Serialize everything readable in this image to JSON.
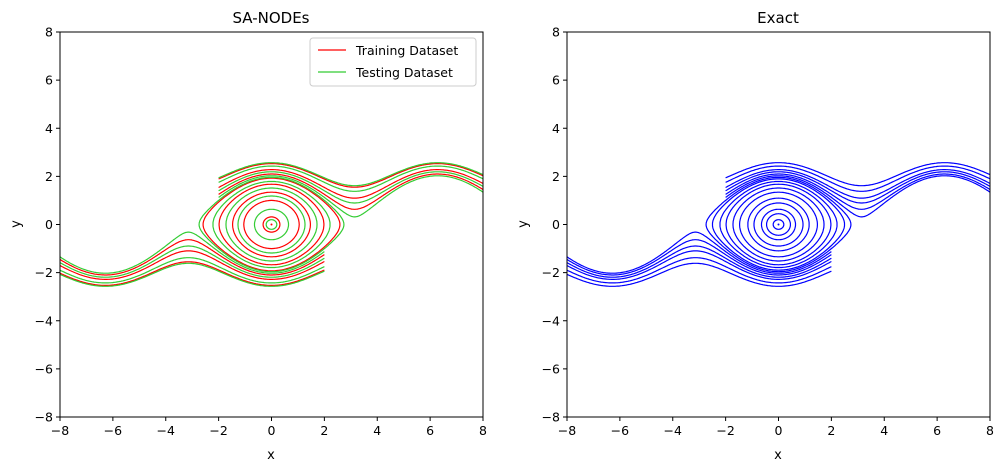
{
  "chart_data": [
    {
      "type": "line",
      "title": "SA-NODEs",
      "xlabel": "x",
      "ylabel": "y",
      "xlim": [
        -8,
        8
      ],
      "ylim": [
        -8,
        8
      ],
      "xticks": [
        -8,
        -6,
        -4,
        -2,
        0,
        2,
        4,
        6,
        8
      ],
      "yticks": [
        -8,
        -6,
        -4,
        -2,
        0,
        2,
        4,
        6,
        8
      ],
      "grid": false,
      "legend": {
        "position": "top-right",
        "entries": [
          {
            "label": "Training Dataset",
            "color": "#ff0000"
          },
          {
            "label": "Testing Dataset",
            "color": "#33cc33"
          }
        ]
      },
      "series": [
        {
          "name": "Training Dataset",
          "color": "#ff0000",
          "kind": "orbit",
          "energies": [
            -0.95,
            -0.5,
            -0.1,
            0.4,
            0.85
          ]
        },
        {
          "name": "Training Dataset",
          "color": "#ff0000",
          "kind": "wave",
          "direction": "right",
          "energies": [
            1.2,
            1.6,
            2.2
          ],
          "x_start": -2.0
        },
        {
          "name": "Training Dataset",
          "color": "#ff0000",
          "kind": "wave",
          "direction": "left",
          "energies": [
            1.2,
            1.6,
            2.2
          ],
          "x_start": 2.0
        },
        {
          "name": "Testing Dataset",
          "color": "#33cc33",
          "kind": "orbit",
          "energies": [
            -0.98,
            -0.8,
            -0.3,
            0.15,
            0.6,
            0.92
          ]
        },
        {
          "name": "Testing Dataset",
          "color": "#33cc33",
          "kind": "wave",
          "direction": "right",
          "energies": [
            1.05,
            1.4,
            1.95,
            2.3
          ],
          "x_start": -2.0
        },
        {
          "name": "Testing Dataset",
          "color": "#33cc33",
          "kind": "wave",
          "direction": "left",
          "energies": [
            1.05,
            1.4,
            1.95,
            2.3
          ],
          "x_start": 2.0
        }
      ],
      "equilibrium": {
        "x": 0,
        "y": 0
      }
    },
    {
      "type": "line",
      "title": "Exact",
      "xlabel": "x",
      "ylabel": "y",
      "xlim": [
        -8,
        8
      ],
      "ylim": [
        -8,
        8
      ],
      "xticks": [
        -8,
        -6,
        -4,
        -2,
        0,
        2,
        4,
        6,
        8
      ],
      "yticks": [
        -8,
        -6,
        -4,
        -2,
        0,
        2,
        4,
        6,
        8
      ],
      "grid": false,
      "series": [
        {
          "name": "Exact",
          "color": "#0000ff",
          "kind": "orbit",
          "energies": [
            -0.98,
            -0.9,
            -0.8,
            -0.6,
            -0.4,
            -0.1,
            0.15,
            0.4,
            0.6,
            0.8,
            0.92
          ]
        },
        {
          "name": "Exact",
          "color": "#0000ff",
          "kind": "wave",
          "direction": "right",
          "energies": [
            1.05,
            1.2,
            1.4,
            1.6,
            1.95,
            2.3
          ],
          "x_start": -2.0
        },
        {
          "name": "Exact",
          "color": "#0000ff",
          "kind": "wave",
          "direction": "left",
          "energies": [
            1.05,
            1.2,
            1.4,
            1.6,
            1.95,
            2.3
          ],
          "x_start": 2.0
        }
      ],
      "equilibrium": {
        "x": 0,
        "y": 0
      }
    }
  ]
}
